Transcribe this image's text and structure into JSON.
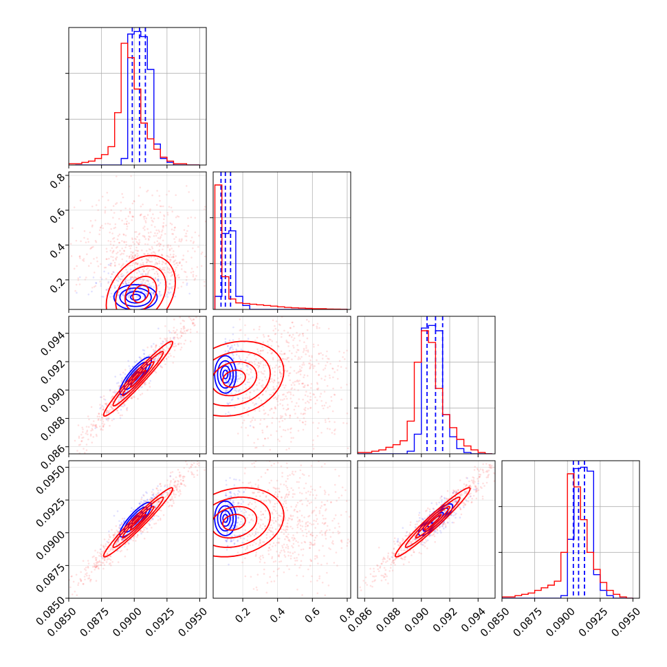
{
  "colors": {
    "series_a": "#0000ff",
    "series_b": "#ff0000",
    "grid": "#b0b0b0",
    "axis": "#000000",
    "background": "#ffffff"
  },
  "chart_data": {
    "type": "corner",
    "grid": true,
    "parameters": [
      {
        "id": "p1",
        "range": [
          0.085,
          0.0955
        ]
      },
      {
        "id": "p2",
        "range": [
          0.03,
          0.82
        ]
      },
      {
        "id": "p3",
        "range": [
          0.0855,
          0.0952
        ]
      },
      {
        "id": "p4",
        "range": [
          0.085,
          0.0955
        ]
      }
    ],
    "tick_labels": {
      "p1": [
        "0.0850",
        "0.0875",
        "0.0900",
        "0.0925",
        "0.0950"
      ],
      "p2": [
        "0.2",
        "0.4",
        "0.6",
        "0.8"
      ],
      "p3": [
        "0.086",
        "0.088",
        "0.090",
        "0.092",
        "0.094"
      ],
      "p4": [
        "0.0850",
        "0.0875",
        "0.0900",
        "0.0925",
        "0.0950"
      ]
    },
    "tick_values": {
      "p1": [
        0.085,
        0.0875,
        0.09,
        0.0925,
        0.095
      ],
      "p2": [
        0.2,
        0.4,
        0.6,
        0.8
      ],
      "p3": [
        0.086,
        0.088,
        0.09,
        0.092,
        0.094
      ],
      "p4": [
        0.085,
        0.0875,
        0.09,
        0.0925,
        0.095
      ]
    },
    "series": [
      {
        "color": "#0000ff",
        "quantiles": {
          "p1": [
            0.08985,
            0.0904,
            0.09085
          ],
          "p2": [
            0.075,
            0.1,
            0.13
          ],
          "p3": [
            0.0904,
            0.091,
            0.0915
          ],
          "p4": [
            0.09045,
            0.09085,
            0.0913
          ]
        },
        "histograms": {
          "p1": {
            "edges": [
              0.0855,
              0.086,
              0.0865,
              0.087,
              0.0875,
              0.088,
              0.0885,
              0.089,
              0.0895,
              0.09,
              0.0905,
              0.091,
              0.0915,
              0.092,
              0.0925,
              0.093,
              0.0935,
              0.094,
              0.0945,
              0.095
            ],
            "counts": [
              0,
              0,
              0,
              0,
              0,
              0,
              0,
              0.05,
              1.0,
              1.02,
              0.98,
              0.73,
              0.16,
              0.05,
              0.02,
              0,
              0,
              0,
              0
            ]
          },
          "p2": {
            "edges": [
              0.04,
              0.08,
              0.12,
              0.16,
              0.2,
              0.24,
              0.28,
              0.32,
              0.36,
              0.4,
              0.44,
              0.48,
              0.52,
              0.56,
              0.6,
              0.64,
              0.68,
              0.72,
              0.76,
              0.8
            ],
            "counts": [
              0.1,
              0.58,
              0.6,
              0.1,
              0.03,
              0,
              0,
              0,
              0,
              0,
              0,
              0,
              0,
              0,
              0,
              0,
              0,
              0,
              0
            ]
          },
          "p3": {
            "edges": [
              0.0855,
              0.086,
              0.0865,
              0.087,
              0.0875,
              0.088,
              0.0885,
              0.089,
              0.0895,
              0.09,
              0.0905,
              0.091,
              0.0915,
              0.092,
              0.0925,
              0.093,
              0.0935,
              0.094,
              0.0945,
              0.095
            ],
            "counts": [
              0,
              0,
              0,
              0,
              0,
              0,
              0,
              0.02,
              0.15,
              0.96,
              0.98,
              0.94,
              0.3,
              0.13,
              0.04,
              0.01,
              0,
              0,
              0
            ]
          },
          "p4": {
            "edges": [
              0.085,
              0.0855,
              0.086,
              0.0865,
              0.087,
              0.0875,
              0.088,
              0.0885,
              0.089,
              0.0895,
              0.09,
              0.0905,
              0.091,
              0.0915,
              0.092,
              0.0925,
              0.093,
              0.0935,
              0.094,
              0.0945,
              0.095
            ],
            "counts": [
              0,
              0,
              0,
              0,
              0,
              0,
              0,
              0,
              0,
              0.02,
              0.45,
              0.99,
              1.0,
              0.97,
              0.18,
              0.06,
              0.02,
              0,
              0,
              0
            ]
          }
        },
        "contours_2d": {
          "p2_p1": {
            "center": [
              0.0901,
              0.1
            ],
            "spread": [
              0.00075,
              0.033
            ],
            "corr": 0.0
          },
          "p3_p1": {
            "center": [
              0.0901,
              0.091
            ],
            "spread": [
              0.00055,
              0.0006
            ],
            "corr": 0.85
          },
          "p3_p2": {
            "center": [
              0.1,
              0.0911
            ],
            "spread": [
              0.028,
              0.0006
            ],
            "corr": 0.0
          },
          "p4_p1": {
            "center": [
              0.0901,
              0.091
            ],
            "spread": [
              0.00055,
              0.0006
            ],
            "corr": 0.85
          },
          "p4_p2": {
            "center": [
              0.1,
              0.0911
            ],
            "spread": [
              0.028,
              0.0006
            ],
            "corr": 0.0
          },
          "p4_p3": {
            "center": [
              0.091,
              0.091
            ],
            "spread": [
              0.00055,
              0.00055
            ],
            "corr": 0.85
          }
        }
      },
      {
        "color": "#ff0000",
        "quantiles": {},
        "histograms": {
          "p1": {
            "edges": [
              0.085,
              0.0855,
              0.086,
              0.0865,
              0.087,
              0.0875,
              0.088,
              0.0885,
              0.089,
              0.0895,
              0.09,
              0.0905,
              0.091,
              0.0915,
              0.092,
              0.0925,
              0.093,
              0.0935,
              0.094,
              0.0945,
              0.095
            ],
            "counts": [
              0.01,
              0.01,
              0.02,
              0.03,
              0.05,
              0.08,
              0.14,
              0.4,
              0.93,
              0.82,
              0.58,
              0.32,
              0.2,
              0.12,
              0.06,
              0.03,
              0.01,
              0.01,
              0,
              0
            ]
          },
          "p2": {
            "edges": [
              0.04,
              0.08,
              0.12,
              0.16,
              0.2,
              0.24,
              0.28,
              0.32,
              0.36,
              0.4,
              0.44,
              0.48,
              0.52,
              0.56,
              0.6,
              0.64,
              0.68,
              0.72,
              0.76,
              0.8
            ],
            "counts": [
              0.95,
              0.25,
              0.08,
              0.05,
              0.045,
              0.04,
              0.035,
              0.03,
              0.025,
              0.02,
              0.015,
              0.012,
              0.01,
              0.008,
              0.006,
              0.005,
              0.003,
              0.002,
              0.001
            ]
          },
          "p3": {
            "edges": [
              0.0855,
              0.086,
              0.0865,
              0.087,
              0.0875,
              0.088,
              0.0885,
              0.089,
              0.0895,
              0.09,
              0.0905,
              0.091,
              0.0915,
              0.092,
              0.0925,
              0.093,
              0.0935,
              0.094,
              0.0945,
              0.095
            ],
            "counts": [
              0.01,
              0.01,
              0.02,
              0.03,
              0.05,
              0.07,
              0.1,
              0.25,
              0.7,
              0.94,
              0.85,
              0.5,
              0.3,
              0.2,
              0.11,
              0.06,
              0.03,
              0.01,
              0
            ]
          },
          "p4": {
            "edges": [
              0.085,
              0.0855,
              0.086,
              0.0865,
              0.087,
              0.0875,
              0.088,
              0.0885,
              0.089,
              0.0895,
              0.09,
              0.0905,
              0.091,
              0.0915,
              0.092,
              0.0925,
              0.093,
              0.0935,
              0.094,
              0.0945,
              0.095
            ],
            "counts": [
              0.01,
              0.01,
              0.02,
              0.03,
              0.04,
              0.06,
              0.08,
              0.1,
              0.13,
              0.35,
              0.95,
              0.85,
              0.6,
              0.35,
              0.22,
              0.12,
              0.06,
              0.03,
              0.01,
              0
            ]
          }
        },
        "contours_2d": {
          "p2_p1": {
            "center": [
              0.0905,
              0.12
            ],
            "spread": [
              0.0012,
              0.1
            ],
            "corr": 0.3
          },
          "p3_p1": {
            "center": [
              0.0903,
              0.0908
            ],
            "spread": [
              0.0012,
              0.0012
            ],
            "corr": 0.97
          },
          "p3_p2": {
            "center": [
              0.15,
              0.0908
            ],
            "spread": [
              0.13,
              0.0012
            ],
            "corr": 0.2
          },
          "p4_p1": {
            "center": [
              0.0903,
              0.0908
            ],
            "spread": [
              0.0012,
              0.0012
            ],
            "corr": 0.97
          },
          "p4_p2": {
            "center": [
              0.15,
              0.0908
            ],
            "spread": [
              0.13,
              0.0012
            ],
            "corr": 0.2
          },
          "p4_p3": {
            "center": [
              0.0908,
              0.0908
            ],
            "spread": [
              0.0012,
              0.0012
            ],
            "corr": 0.97
          }
        }
      }
    ]
  }
}
